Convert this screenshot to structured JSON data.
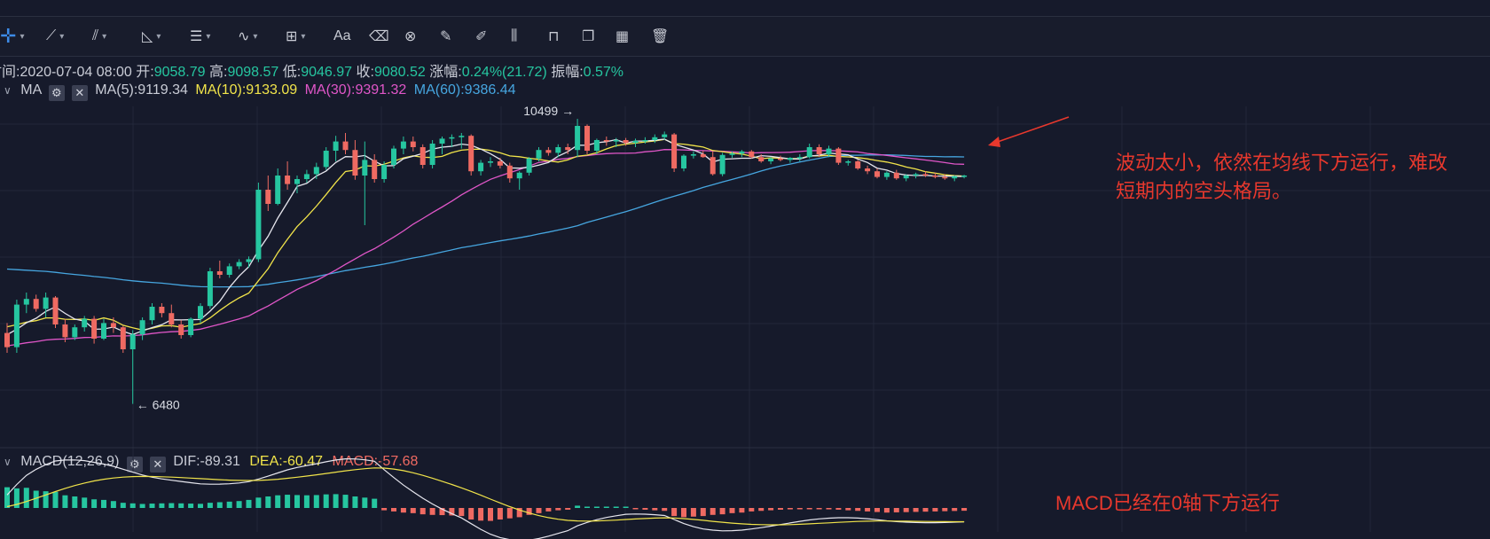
{
  "toolbar": {
    "items": [
      {
        "icon": "crosshair-icon"
      },
      {
        "icon": "trend-line-icon"
      },
      {
        "icon": "multi-line-icon"
      },
      {
        "icon": "angle-tool-icon"
      },
      {
        "icon": "parallel-lines-icon"
      },
      {
        "icon": "wave-icon"
      },
      {
        "icon": "measure-box-icon"
      },
      {
        "icon": "text-tool-icon",
        "label": "Aa"
      },
      {
        "icon": "eraser-icon"
      },
      {
        "icon": "magnet-icon"
      },
      {
        "icon": "ruler-icon"
      },
      {
        "icon": "brush-icon"
      },
      {
        "icon": "candles-icon"
      },
      {
        "icon": "lock-icon"
      },
      {
        "icon": "copy-icon"
      },
      {
        "icon": "calendar-icon"
      },
      {
        "icon": "trash-icon"
      }
    ]
  },
  "info": {
    "time_label": "时间:",
    "time": "2020-07-04 08:00",
    "open_label": "开:",
    "open": "9058.79",
    "high_label": "高:",
    "high": "9098.57",
    "low_label": "低:",
    "low": "9046.97",
    "close_label": "收:",
    "close": "9080.52",
    "change_label": "涨幅:",
    "change": "0.24%(21.72)",
    "amp_label": "振幅:",
    "amp": "0.57%"
  },
  "ma": {
    "name": "MA",
    "ma5": "MA(5):9119.34",
    "ma10": "MA(10):9133.09",
    "ma30": "MA(30):9391.32",
    "ma60": "MA(60):9386.44",
    "high_marker": "10499",
    "low_marker": "6480"
  },
  "macd": {
    "name": "MACD(12,26,9)",
    "dif": "DIF:-89.31",
    "dea": "DEA:-60.47",
    "macd": "MACD:-57.68"
  },
  "annotations": {
    "main_line1": "波动太小，依然在均线下方运行，难改",
    "main_line2": "短期内的空头格局。",
    "macd_note": "MACD已经在0轴下方运行"
  },
  "colors": {
    "up": "#26c6a0",
    "down": "#ef6a62",
    "ma5": "#e6e6ee",
    "ma10": "#f1e44a",
    "ma30": "#e056c8",
    "ma60": "#46a6e0",
    "annotation": "#e8382d"
  },
  "chart_data": {
    "type": "line",
    "title": "",
    "ylim": [
      6300,
      10700
    ],
    "candles": [
      [
        7480,
        7620,
        7200,
        7280
      ],
      [
        7280,
        7950,
        7200,
        7880
      ],
      [
        7880,
        8050,
        7760,
        7960
      ],
      [
        7960,
        8020,
        7780,
        7820
      ],
      [
        7820,
        8050,
        7700,
        7980
      ],
      [
        7980,
        8000,
        7550,
        7600
      ],
      [
        7600,
        7680,
        7350,
        7420
      ],
      [
        7420,
        7600,
        7380,
        7560
      ],
      [
        7560,
        7720,
        7500,
        7680
      ],
      [
        7680,
        7720,
        7330,
        7400
      ],
      [
        7400,
        7680,
        7380,
        7620
      ],
      [
        7620,
        7700,
        7480,
        7560
      ],
      [
        7560,
        7580,
        7200,
        7250
      ],
      [
        7250,
        7520,
        6480,
        7460
      ],
      [
        7460,
        7700,
        7380,
        7660
      ],
      [
        7660,
        7900,
        7600,
        7850
      ],
      [
        7850,
        7900,
        7700,
        7760
      ],
      [
        7760,
        7880,
        7560,
        7600
      ],
      [
        7600,
        7660,
        7400,
        7450
      ],
      [
        7450,
        7700,
        7420,
        7680
      ],
      [
        7680,
        7900,
        7620,
        7860
      ],
      [
        7860,
        8400,
        7820,
        8350
      ],
      [
        8350,
        8500,
        8250,
        8300
      ],
      [
        8300,
        8460,
        8260,
        8420
      ],
      [
        8420,
        8520,
        8380,
        8480
      ],
      [
        8480,
        8560,
        8400,
        8520
      ],
      [
        8520,
        9600,
        8480,
        9500
      ],
      [
        9500,
        9700,
        9200,
        9300
      ],
      [
        9300,
        9800,
        9280,
        9700
      ],
      [
        9700,
        9900,
        9500,
        9580
      ],
      [
        9580,
        9700,
        9450,
        9650
      ],
      [
        9650,
        9780,
        9600,
        9720
      ],
      [
        9720,
        9880,
        9650,
        9820
      ],
      [
        9820,
        10100,
        9780,
        10050
      ],
      [
        10050,
        10260,
        9900,
        10180
      ],
      [
        10180,
        10300,
        10000,
        10060
      ],
      [
        10060,
        10200,
        9640,
        9700
      ],
      [
        9700,
        10180,
        9000,
        9920
      ],
      [
        9920,
        10000,
        9600,
        9650
      ],
      [
        9650,
        9900,
        9600,
        9850
      ],
      [
        9850,
        10120,
        9800,
        10080
      ],
      [
        10080,
        10250,
        10000,
        10180
      ],
      [
        10180,
        10250,
        10040,
        10100
      ],
      [
        10100,
        10140,
        9800,
        9850
      ],
      [
        9850,
        10200,
        9800,
        10150
      ],
      [
        10150,
        10250,
        10000,
        10220
      ],
      [
        10220,
        10280,
        10100,
        10240
      ],
      [
        10240,
        10300,
        10080,
        10260
      ],
      [
        10260,
        10280,
        9700,
        9760
      ],
      [
        9760,
        9920,
        9700,
        9880
      ],
      [
        9880,
        9960,
        9820,
        9900
      ],
      [
        9900,
        9950,
        9800,
        9840
      ],
      [
        9840,
        9880,
        9600,
        9660
      ],
      [
        9660,
        9760,
        9500,
        9740
      ],
      [
        9740,
        9960,
        9700,
        9940
      ],
      [
        9940,
        10100,
        9900,
        10060
      ],
      [
        10060,
        10100,
        9980,
        10020
      ],
      [
        10020,
        10140,
        9960,
        10100
      ],
      [
        10100,
        10150,
        10000,
        10060
      ],
      [
        10060,
        10499,
        9960,
        10400
      ],
      [
        10400,
        10420,
        10000,
        10050
      ],
      [
        10050,
        10220,
        10000,
        10200
      ],
      [
        10200,
        10250,
        10120,
        10180
      ],
      [
        10180,
        10230,
        10100,
        10200
      ],
      [
        10200,
        10230,
        10120,
        10160
      ],
      [
        10160,
        10220,
        10100,
        10190
      ],
      [
        10190,
        10240,
        10150,
        10200
      ],
      [
        10200,
        10280,
        10160,
        10240
      ],
      [
        10240,
        10320,
        10200,
        10280
      ],
      [
        10280,
        10300,
        9750,
        9800
      ],
      [
        9800,
        10000,
        9760,
        9980
      ],
      [
        9980,
        10040,
        9940,
        10000
      ],
      [
        10000,
        10050,
        9950,
        9960
      ],
      [
        9960,
        10040,
        9700,
        9720
      ],
      [
        9720,
        10020,
        9690,
        9990
      ],
      [
        9990,
        10040,
        9950,
        10010
      ],
      [
        10010,
        10060,
        9960,
        10040
      ],
      [
        10040,
        10060,
        9940,
        9960
      ],
      [
        9960,
        10000,
        9880,
        9900
      ],
      [
        9900,
        9960,
        9860,
        9940
      ],
      [
        9940,
        9980,
        9900,
        9920
      ],
      [
        9920,
        9960,
        9880,
        9950
      ],
      [
        9950,
        10000,
        9900,
        9960
      ],
      [
        9960,
        10150,
        9940,
        10100
      ],
      [
        10100,
        10140,
        9960,
        10000
      ],
      [
        10000,
        10120,
        9960,
        10080
      ],
      [
        10080,
        10100,
        9850,
        9880
      ],
      [
        9880,
        9920,
        9840,
        9900
      ],
      [
        9900,
        9920,
        9780,
        9800
      ],
      [
        9800,
        9840,
        9720,
        9760
      ],
      [
        9760,
        9800,
        9660,
        9680
      ],
      [
        9680,
        9760,
        9640,
        9740
      ],
      [
        9740,
        9780,
        9640,
        9660
      ],
      [
        9660,
        9720,
        9620,
        9700
      ],
      [
        9700,
        9740,
        9660,
        9720
      ],
      [
        9720,
        9760,
        9680,
        9700
      ],
      [
        9700,
        9740,
        9660,
        9680
      ],
      [
        9680,
        9720,
        9640,
        9660
      ],
      [
        9660,
        9700,
        9620,
        9690
      ],
      [
        9690,
        9710,
        9660,
        9700
      ]
    ],
    "macd_hist": [
      180,
      170,
      175,
      150,
      145,
      140,
      110,
      100,
      90,
      75,
      70,
      60,
      45,
      40,
      35,
      38,
      40,
      42,
      40,
      38,
      36,
      45,
      50,
      55,
      60,
      70,
      90,
      100,
      110,
      115,
      112,
      110,
      112,
      118,
      120,
      115,
      100,
      90,
      80,
      -20,
      -30,
      -40,
      -45,
      -55,
      -60,
      -62,
      -65,
      -70,
      -100,
      -110,
      -112,
      -100,
      -90,
      -80,
      -60,
      -45,
      -30,
      -20,
      -15,
      20,
      10,
      8,
      6,
      4,
      5,
      -10,
      -15,
      -20,
      -25,
      -70,
      -80,
      -75,
      -70,
      -60,
      -55,
      -45,
      -40,
      -30,
      -25,
      -20,
      -15,
      -12,
      -10,
      -8,
      -10,
      -12,
      -15,
      -20,
      -25,
      -30,
      -35,
      -40,
      -38,
      -36,
      -34,
      -32,
      -30,
      -28,
      -26,
      -24
    ]
  }
}
